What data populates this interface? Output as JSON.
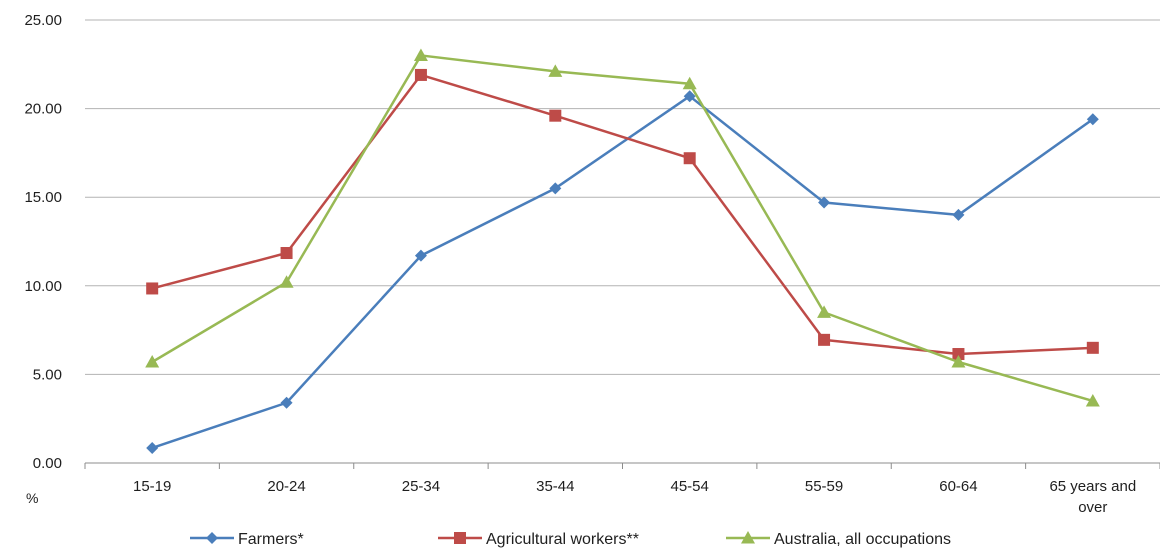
{
  "chart_data": {
    "type": "line",
    "title": "",
    "xlabel": "",
    "ylabel": "%",
    "ylim": [
      0,
      25
    ],
    "yticks": [
      "0.00",
      "5.00",
      "10.00",
      "15.00",
      "20.00",
      "25.00"
    ],
    "grid": true,
    "legend_position": "bottom",
    "categories": [
      "15-19",
      "20-24",
      "25-34",
      "35-44",
      "45-54",
      "55-59",
      "60-64",
      "65 years and over"
    ],
    "series": [
      {
        "name": "Farmers*",
        "color": "#4a7ebb",
        "marker": "diamond",
        "values": [
          0.85,
          3.4,
          11.7,
          15.5,
          20.7,
          14.7,
          14.0,
          19.4
        ]
      },
      {
        "name": "Agricultural workers**",
        "color": "#be4b48",
        "marker": "square",
        "values": [
          9.85,
          11.85,
          21.9,
          19.6,
          17.2,
          6.95,
          6.15,
          6.5
        ]
      },
      {
        "name": "Australia, all occupations",
        "color": "#98b954",
        "marker": "triangle",
        "values": [
          5.7,
          10.2,
          23.0,
          22.1,
          21.4,
          8.5,
          5.7,
          3.5
        ]
      }
    ]
  }
}
